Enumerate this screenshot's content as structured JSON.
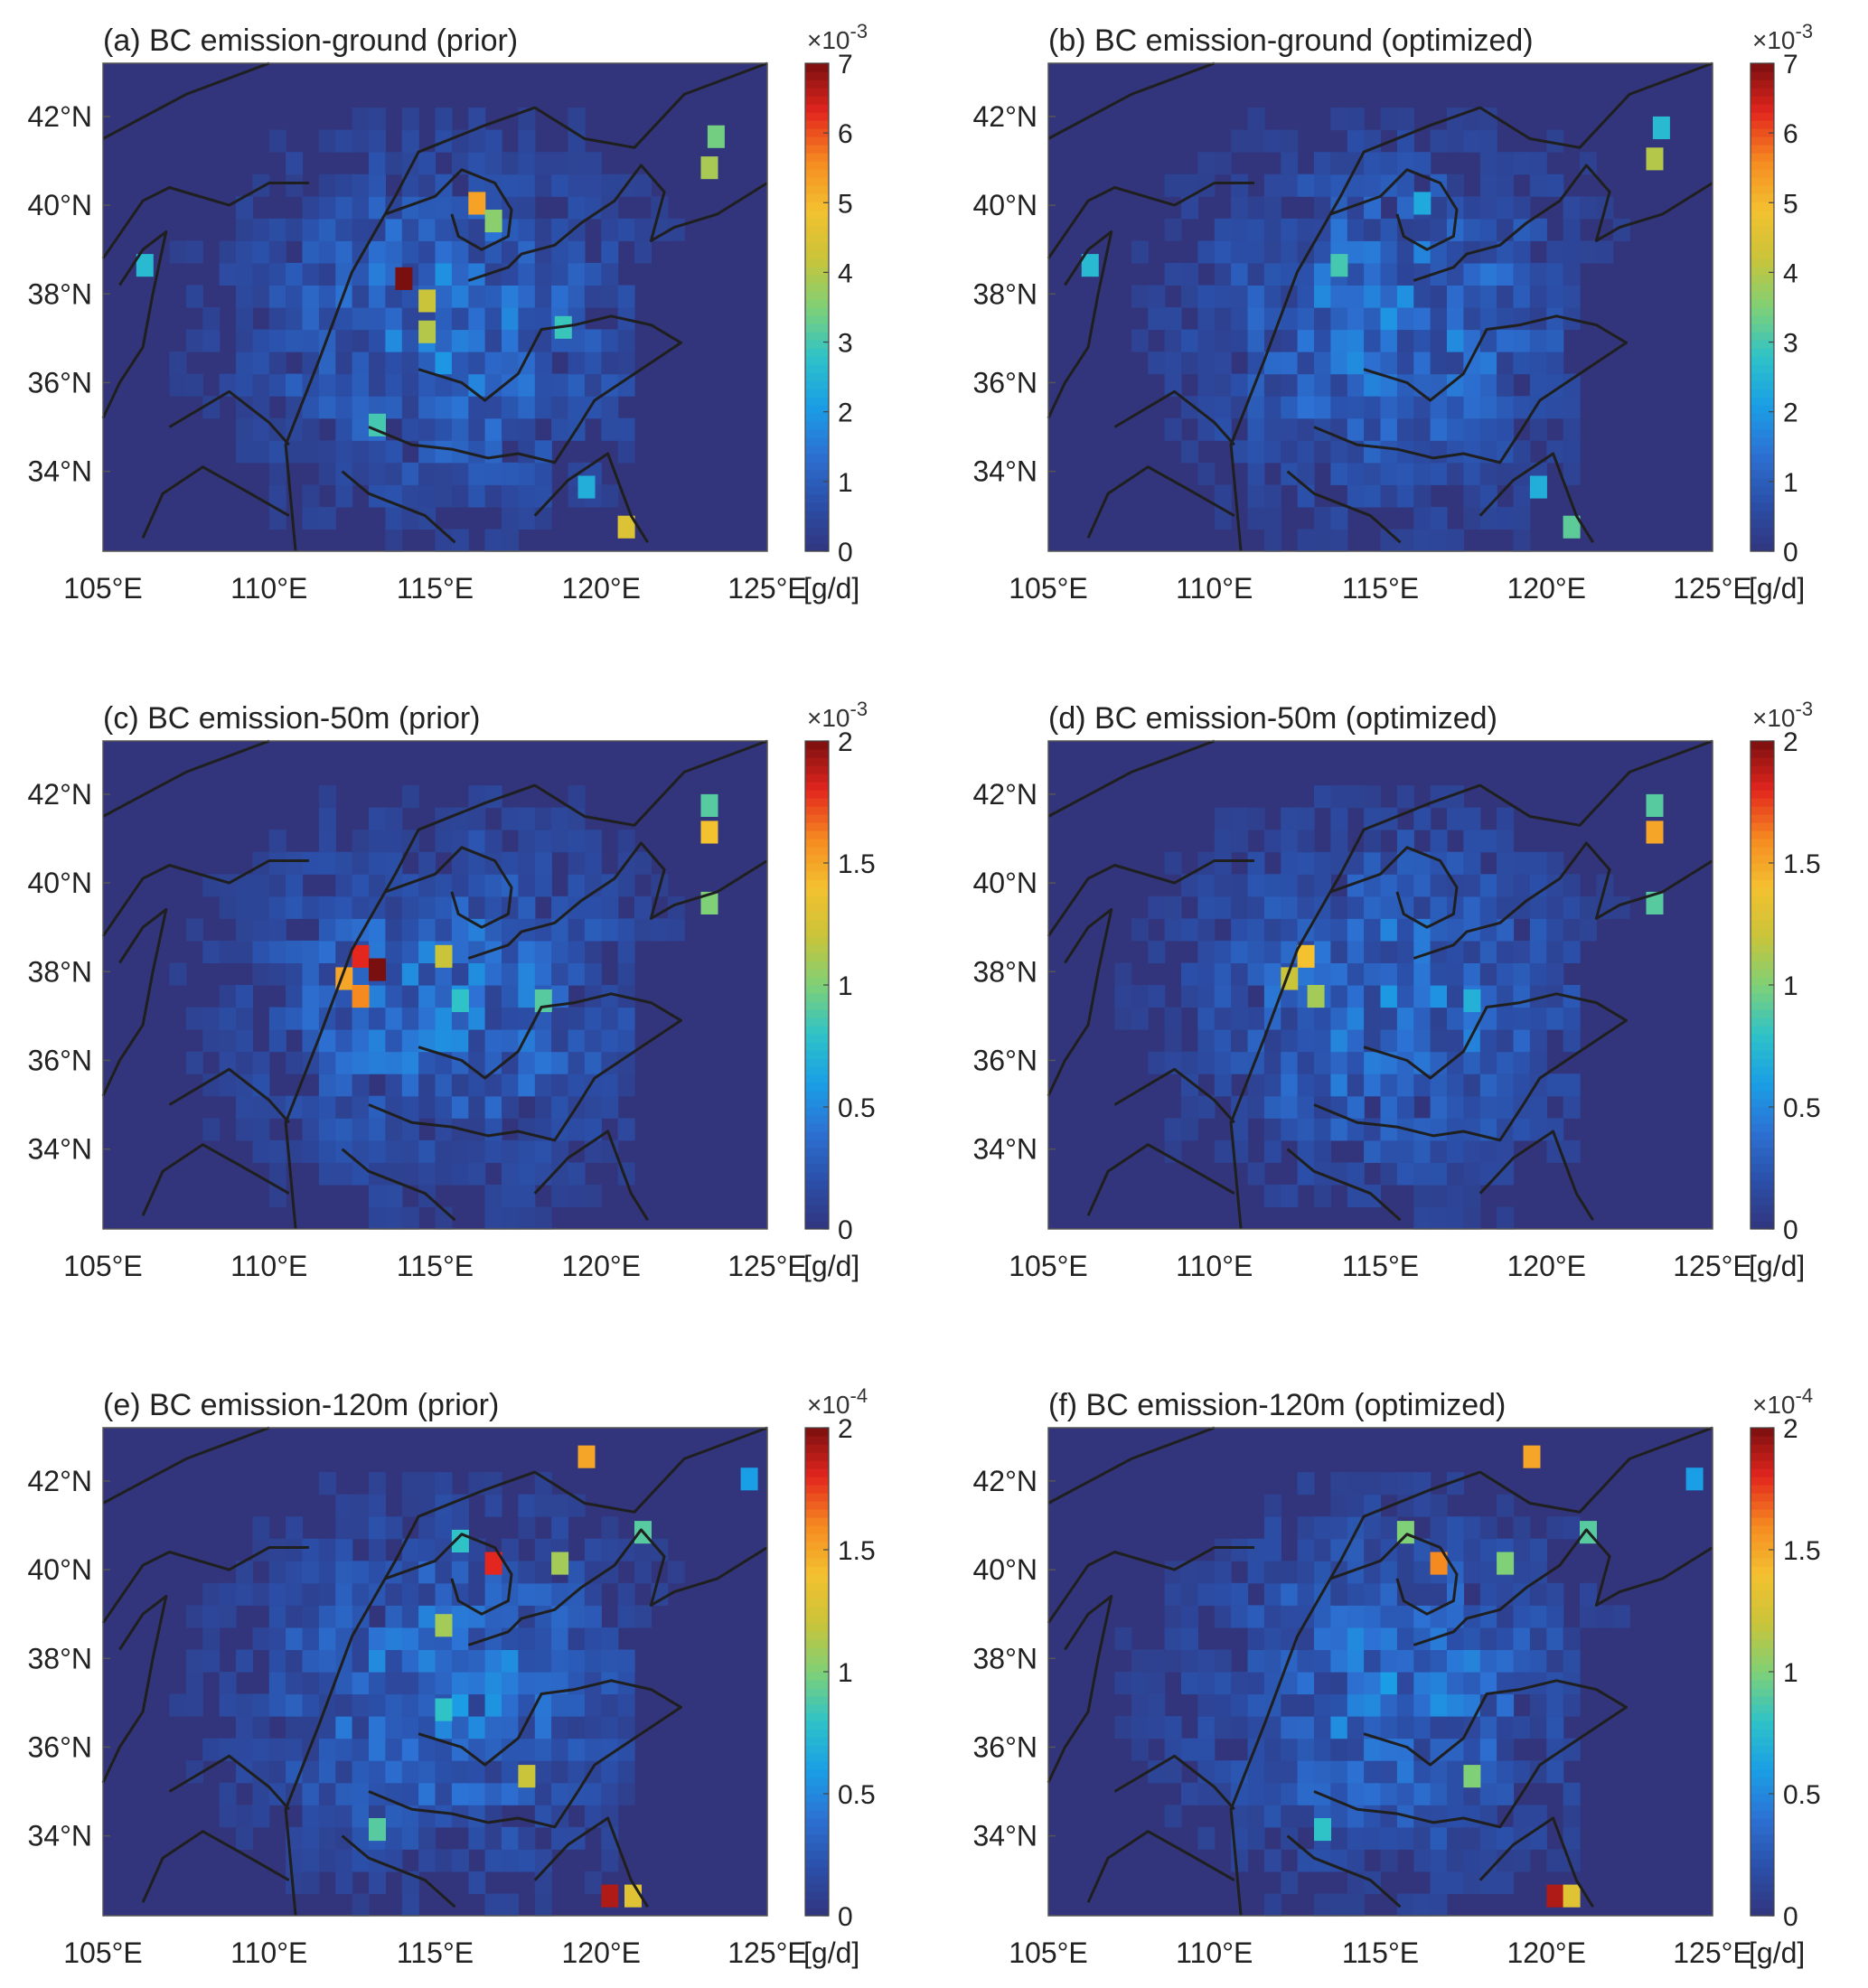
{
  "figure": {
    "colors": {
      "background_map": "#32357b",
      "border_line": "#1f1f1f",
      "colormap": [
        "#31367e",
        "#2b4fa8",
        "#2c71d3",
        "#1a9fe6",
        "#2fc3c7",
        "#7fd076",
        "#c9c43a",
        "#f4c12f",
        "#f58a21",
        "#e3261e",
        "#7a0f0f"
      ]
    },
    "panels": [
      {
        "id": "a",
        "title": "(a) BC emission-ground (prior)",
        "colorbar": {
          "exponent_label": "×10",
          "exponent": "-3",
          "unit": "[g/d]",
          "ticks": [
            "0",
            "1",
            "2",
            "3",
            "4",
            "5",
            "6",
            "7"
          ],
          "max": 7
        },
        "x_ticks": [
          "105°E",
          "110°E",
          "115°E",
          "120°E",
          "125°E"
        ],
        "y_ticks": [
          "34°N",
          "36°N",
          "38°N",
          "40°N",
          "42°N"
        ],
        "hotspots": [
          {
            "lon": 113.8,
            "lat": 38.1,
            "value": 7.0
          },
          {
            "lon": 114.5,
            "lat": 37.6,
            "value": 4.2
          },
          {
            "lon": 114.5,
            "lat": 36.9,
            "value": 4.0
          },
          {
            "lon": 116.0,
            "lat": 39.8,
            "value": 5.3
          },
          {
            "lon": 116.5,
            "lat": 39.4,
            "value": 3.6
          },
          {
            "lon": 123.2,
            "lat": 41.3,
            "value": 3.4
          },
          {
            "lon": 123.0,
            "lat": 40.6,
            "value": 3.9
          },
          {
            "lon": 118.6,
            "lat": 37.0,
            "value": 2.9
          },
          {
            "lon": 113.0,
            "lat": 34.8,
            "value": 3.0
          },
          {
            "lon": 119.3,
            "lat": 33.4,
            "value": 2.4
          },
          {
            "lon": 120.5,
            "lat": 32.5,
            "value": 4.5
          },
          {
            "lon": 106.0,
            "lat": 38.4,
            "value": 2.6
          }
        ]
      },
      {
        "id": "b",
        "title": "(b) BC emission-ground (optimized)",
        "colorbar": {
          "exponent_label": "×10",
          "exponent": "-3",
          "unit": "[g/d]",
          "ticks": [
            "0",
            "1",
            "2",
            "3",
            "4",
            "5",
            "6",
            "7"
          ],
          "max": 7
        },
        "x_ticks": [
          "105°E",
          "110°E",
          "115°E",
          "120°E",
          "125°E"
        ],
        "y_ticks": [
          "34°N",
          "36°N",
          "38°N",
          "40°N",
          "42°N"
        ],
        "hotspots": [
          {
            "lon": 123.2,
            "lat": 41.5,
            "value": 2.6
          },
          {
            "lon": 123.0,
            "lat": 40.8,
            "value": 4.0
          },
          {
            "lon": 116.0,
            "lat": 39.8,
            "value": 2.3
          },
          {
            "lon": 113.5,
            "lat": 38.4,
            "value": 3.0
          },
          {
            "lon": 119.5,
            "lat": 33.4,
            "value": 2.4
          },
          {
            "lon": 120.5,
            "lat": 32.5,
            "value": 3.2
          },
          {
            "lon": 106.0,
            "lat": 38.4,
            "value": 2.6
          }
        ]
      },
      {
        "id": "c",
        "title": "(c) BC emission-50m (prior)",
        "colorbar": {
          "exponent_label": "×10",
          "exponent": "-3",
          "unit": "[g/d]",
          "ticks": [
            "0",
            "0.5",
            "1",
            "1.5",
            "2"
          ],
          "max": 2
        },
        "x_ticks": [
          "105°E",
          "110°E",
          "115°E",
          "120°E",
          "125°E"
        ],
        "y_ticks": [
          "34°N",
          "36°N",
          "38°N",
          "40°N",
          "42°N"
        ],
        "hotspots": [
          {
            "lon": 112.5,
            "lat": 38.1,
            "value": 1.8
          },
          {
            "lon": 113.0,
            "lat": 37.8,
            "value": 2.0
          },
          {
            "lon": 112.0,
            "lat": 37.6,
            "value": 1.5
          },
          {
            "lon": 112.5,
            "lat": 37.2,
            "value": 1.6
          },
          {
            "lon": 115.0,
            "lat": 38.1,
            "value": 1.2
          },
          {
            "lon": 123.0,
            "lat": 40.9,
            "value": 1.4
          },
          {
            "lon": 123.0,
            "lat": 41.5,
            "value": 0.9
          },
          {
            "lon": 118.0,
            "lat": 37.1,
            "value": 0.9
          },
          {
            "lon": 115.5,
            "lat": 37.1,
            "value": 0.8
          },
          {
            "lon": 123.0,
            "lat": 39.3,
            "value": 1.0
          }
        ]
      },
      {
        "id": "d",
        "title": "(d) BC emission-50m (optimized)",
        "colorbar": {
          "exponent_label": "×10",
          "exponent": "-3",
          "unit": "[g/d]",
          "ticks": [
            "0",
            "0.5",
            "1",
            "1.5",
            "2"
          ],
          "max": 2
        },
        "x_ticks": [
          "105°E",
          "110°E",
          "115°E",
          "120°E",
          "125°E"
        ],
        "y_ticks": [
          "34°N",
          "36°N",
          "38°N",
          "40°N",
          "42°N"
        ],
        "hotspots": [
          {
            "lon": 112.5,
            "lat": 38.1,
            "value": 1.4
          },
          {
            "lon": 112.0,
            "lat": 37.6,
            "value": 1.2
          },
          {
            "lon": 112.8,
            "lat": 37.2,
            "value": 1.1
          },
          {
            "lon": 123.0,
            "lat": 40.9,
            "value": 1.5
          },
          {
            "lon": 123.0,
            "lat": 41.5,
            "value": 0.9
          },
          {
            "lon": 123.0,
            "lat": 39.3,
            "value": 0.9
          },
          {
            "lon": 117.5,
            "lat": 37.1,
            "value": 0.7
          }
        ]
      },
      {
        "id": "e",
        "title": "(e) BC emission-120m (prior)",
        "colorbar": {
          "exponent_label": "×10",
          "exponent": "-4",
          "unit": "[g/d]",
          "ticks": [
            "0",
            "0.5",
            "1",
            "1.5",
            "2"
          ],
          "max": 2
        },
        "x_ticks": [
          "105°E",
          "110°E",
          "115°E",
          "120°E",
          "125°E"
        ],
        "y_ticks": [
          "34°N",
          "36°N",
          "38°N",
          "40°N",
          "42°N"
        ],
        "hotspots": [
          {
            "lon": 116.5,
            "lat": 39.9,
            "value": 1.8
          },
          {
            "lon": 119.3,
            "lat": 42.3,
            "value": 1.5
          },
          {
            "lon": 118.5,
            "lat": 39.9,
            "value": 1.1
          },
          {
            "lon": 115.0,
            "lat": 38.5,
            "value": 1.1
          },
          {
            "lon": 117.5,
            "lat": 35.1,
            "value": 1.2
          },
          {
            "lon": 120.0,
            "lat": 32.4,
            "value": 1.9
          },
          {
            "lon": 120.7,
            "lat": 32.4,
            "value": 1.3
          },
          {
            "lon": 121.0,
            "lat": 40.6,
            "value": 0.9
          },
          {
            "lon": 115.5,
            "lat": 40.4,
            "value": 0.8
          },
          {
            "lon": 113.0,
            "lat": 33.9,
            "value": 0.9
          },
          {
            "lon": 115.0,
            "lat": 36.6,
            "value": 0.8
          },
          {
            "lon": 124.2,
            "lat": 41.8,
            "value": 0.6
          }
        ]
      },
      {
        "id": "f",
        "title": "(f) BC emission-120m (optimized)",
        "colorbar": {
          "exponent_label": "×10",
          "exponent": "-4",
          "unit": "[g/d]",
          "ticks": [
            "0",
            "0.5",
            "1",
            "1.5",
            "2"
          ],
          "max": 2
        },
        "x_ticks": [
          "105°E",
          "110°E",
          "115°E",
          "120°E",
          "125°E"
        ],
        "y_ticks": [
          "34°N",
          "36°N",
          "38°N",
          "40°N",
          "42°N"
        ],
        "hotspots": [
          {
            "lon": 116.5,
            "lat": 39.9,
            "value": 1.6
          },
          {
            "lon": 119.3,
            "lat": 42.3,
            "value": 1.5
          },
          {
            "lon": 118.5,
            "lat": 39.9,
            "value": 1.0
          },
          {
            "lon": 115.5,
            "lat": 40.6,
            "value": 1.0
          },
          {
            "lon": 121.0,
            "lat": 40.6,
            "value": 0.9
          },
          {
            "lon": 117.5,
            "lat": 35.1,
            "value": 1.0
          },
          {
            "lon": 120.0,
            "lat": 32.4,
            "value": 1.9
          },
          {
            "lon": 120.5,
            "lat": 32.4,
            "value": 1.3
          },
          {
            "lon": 113.0,
            "lat": 33.9,
            "value": 0.8
          },
          {
            "lon": 124.2,
            "lat": 41.8,
            "value": 0.6
          }
        ]
      }
    ]
  },
  "chart_data": [
    {
      "type": "heatmap",
      "title": "(a) BC emission-ground (prior)",
      "xlim": [
        105,
        125
      ],
      "ylim": [
        32.2,
        43.2
      ],
      "x_ticks": [
        "105°E",
        "110°E",
        "115°E",
        "120°E",
        "125°E"
      ],
      "y_ticks": [
        "34°N",
        "36°N",
        "38°N",
        "40°N",
        "42°N"
      ],
      "colorbar_range": [
        0,
        0.007
      ],
      "unit": "[g/d]"
    },
    {
      "type": "heatmap",
      "title": "(b) BC emission-ground (optimized)",
      "xlim": [
        105,
        125
      ],
      "ylim": [
        32.2,
        43.2
      ],
      "x_ticks": [
        "105°E",
        "110°E",
        "115°E",
        "120°E",
        "125°E"
      ],
      "y_ticks": [
        "34°N",
        "36°N",
        "38°N",
        "40°N",
        "42°N"
      ],
      "colorbar_range": [
        0,
        0.007
      ],
      "unit": "[g/d]"
    },
    {
      "type": "heatmap",
      "title": "(c) BC emission-50m (prior)",
      "xlim": [
        105,
        125
      ],
      "ylim": [
        32.2,
        43.2
      ],
      "x_ticks": [
        "105°E",
        "110°E",
        "115°E",
        "120°E",
        "125°E"
      ],
      "y_ticks": [
        "34°N",
        "36°N",
        "38°N",
        "40°N",
        "42°N"
      ],
      "colorbar_range": [
        0,
        0.002
      ],
      "unit": "[g/d]"
    },
    {
      "type": "heatmap",
      "title": "(d) BC emission-50m (optimized)",
      "xlim": [
        105,
        125
      ],
      "ylim": [
        32.2,
        43.2
      ],
      "x_ticks": [
        "105°E",
        "110°E",
        "115°E",
        "120°E",
        "125°E"
      ],
      "y_ticks": [
        "34°N",
        "36°N",
        "38°N",
        "40°N",
        "42°N"
      ],
      "colorbar_range": [
        0,
        0.002
      ],
      "unit": "[g/d]"
    },
    {
      "type": "heatmap",
      "title": "(e) BC emission-120m (prior)",
      "xlim": [
        105,
        125
      ],
      "ylim": [
        32.2,
        43.2
      ],
      "x_ticks": [
        "105°E",
        "110°E",
        "115°E",
        "120°E",
        "125°E"
      ],
      "y_ticks": [
        "34°N",
        "36°N",
        "38°N",
        "40°N",
        "42°N"
      ],
      "colorbar_range": [
        0,
        0.0002
      ],
      "unit": "[g/d]"
    },
    {
      "type": "heatmap",
      "title": "(f) BC emission-120m (optimized)",
      "xlim": [
        105,
        125
      ],
      "ylim": [
        32.2,
        43.2
      ],
      "x_ticks": [
        "105°E",
        "110°E",
        "115°E",
        "120°E",
        "125°E"
      ],
      "y_ticks": [
        "34°N",
        "36°N",
        "38°N",
        "40°N",
        "42°N"
      ],
      "colorbar_range": [
        0,
        0.0002
      ],
      "unit": "[g/d]"
    }
  ]
}
